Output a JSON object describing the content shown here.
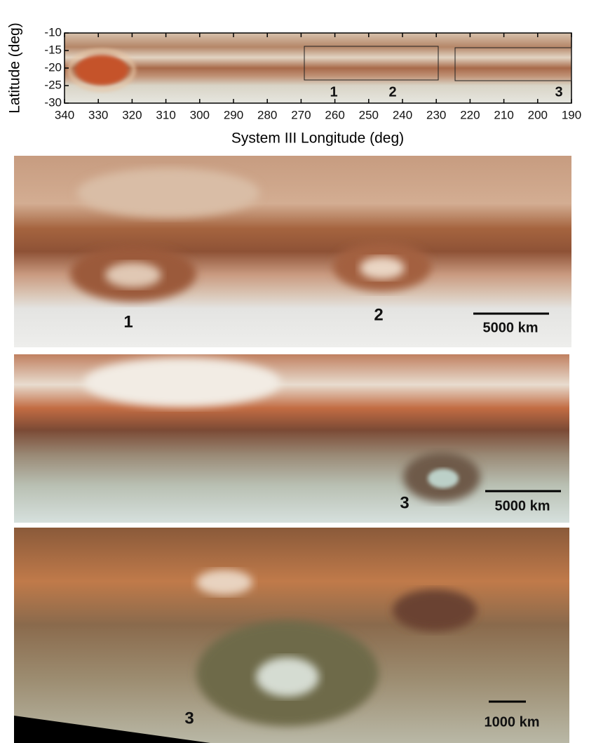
{
  "overview": {
    "ylabel": "Latitude (deg)",
    "xlabel": "System III Longitude (deg)",
    "xlim": [
      340,
      190
    ],
    "ylim": [
      -30,
      -10
    ],
    "xticks": [
      340,
      330,
      320,
      310,
      300,
      290,
      280,
      270,
      260,
      250,
      240,
      230,
      220,
      210,
      200,
      190
    ],
    "yticks": [
      -10,
      -15,
      -20,
      -25,
      -30
    ],
    "labels": [
      "1",
      "2",
      "3"
    ]
  },
  "panels": [
    {
      "labels": [
        "1",
        "2"
      ],
      "scale": "5000 km"
    },
    {
      "labels": [
        "3"
      ],
      "scale": "5000 km"
    },
    {
      "labels": [
        "3"
      ],
      "scale": "1000 km"
    }
  ]
}
